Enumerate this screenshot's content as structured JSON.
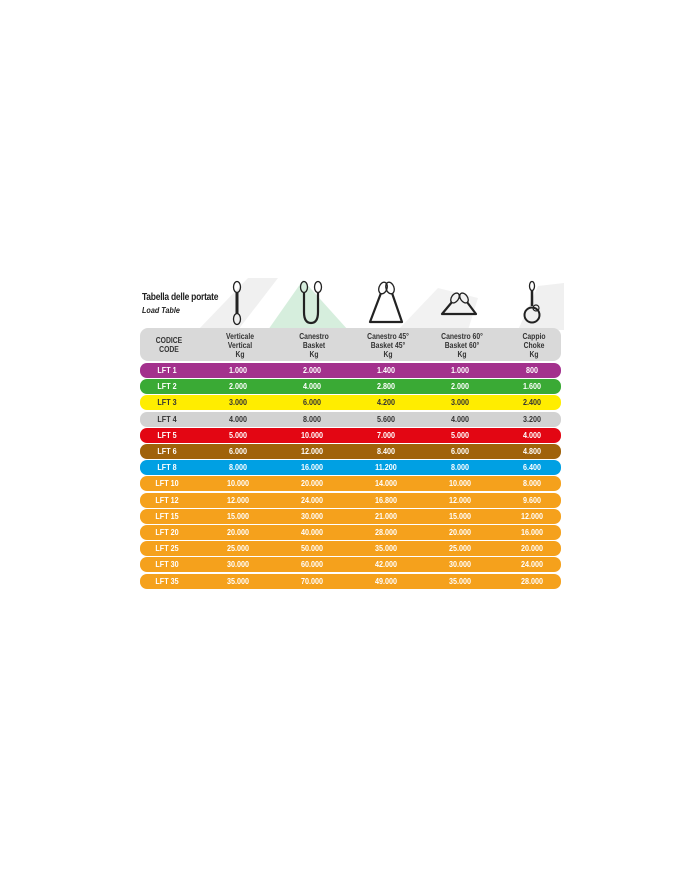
{
  "title": "Tabella delle portate",
  "subtitle": "Load Table",
  "icons": [
    "vertical-sling-icon",
    "basket-sling-icon",
    "basket-45-sling-icon",
    "basket-60-sling-icon",
    "choke-sling-icon"
  ],
  "headers": [
    {
      "l1": "CODICE",
      "l2": "CODE",
      "l3": ""
    },
    {
      "l1": "Verticale",
      "l2": "Vertical",
      "l3": "Kg"
    },
    {
      "l1": "Canestro",
      "l2": "Basket",
      "l3": "Kg"
    },
    {
      "l1": "Canestro 45°",
      "l2": "Basket 45°",
      "l3": "Kg"
    },
    {
      "l1": "Canestro 60°",
      "l2": "Basket 60°",
      "l3": "Kg"
    },
    {
      "l1": "Cappio",
      "l2": "Choke",
      "l3": "Kg"
    }
  ],
  "rows": [
    {
      "color": "#a3318d",
      "text": "#ffffff",
      "cells": [
        "LFT 1",
        "1.000",
        "2.000",
        "1.400",
        "1.000",
        "800"
      ]
    },
    {
      "color": "#3aaa35",
      "text": "#ffffff",
      "cells": [
        "LFT 2",
        "2.000",
        "4.000",
        "2.800",
        "2.000",
        "1.600"
      ]
    },
    {
      "color": "#ffed00",
      "text": "#333333",
      "cells": [
        "LFT 3",
        "3.000",
        "6.000",
        "4.200",
        "3.000",
        "2.400"
      ]
    },
    {
      "color": "#d2d2d2",
      "text": "#333333",
      "cells": [
        "LFT 4",
        "4.000",
        "8.000",
        "5.600",
        "4.000",
        "3.200"
      ]
    },
    {
      "color": "#e30613",
      "text": "#ffffff",
      "cells": [
        "LFT 5",
        "5.000",
        "10.000",
        "7.000",
        "5.000",
        "4.000"
      ]
    },
    {
      "color": "#a0620a",
      "text": "#ffffff",
      "cells": [
        "LFT 6",
        "6.000",
        "12.000",
        "8.400",
        "6.000",
        "4.800"
      ]
    },
    {
      "color": "#00a0e3",
      "text": "#ffffff",
      "cells": [
        "LFT 8",
        "8.000",
        "16.000",
        "11.200",
        "8.000",
        "6.400"
      ]
    },
    {
      "color": "#f5a11c",
      "text": "#ffffff",
      "cells": [
        "LFT 10",
        "10.000",
        "20.000",
        "14.000",
        "10.000",
        "8.000"
      ]
    },
    {
      "color": "#f5a11c",
      "text": "#ffffff",
      "cells": [
        "LFT 12",
        "12.000",
        "24.000",
        "16.800",
        "12.000",
        "9.600"
      ]
    },
    {
      "color": "#f5a11c",
      "text": "#ffffff",
      "cells": [
        "LFT 15",
        "15.000",
        "30.000",
        "21.000",
        "15.000",
        "12.000"
      ]
    },
    {
      "color": "#f5a11c",
      "text": "#ffffff",
      "cells": [
        "LFT 20",
        "20.000",
        "40.000",
        "28.000",
        "20.000",
        "16.000"
      ]
    },
    {
      "color": "#f5a11c",
      "text": "#ffffff",
      "cells": [
        "LFT 25",
        "25.000",
        "50.000",
        "35.000",
        "25.000",
        "20.000"
      ]
    },
    {
      "color": "#f5a11c",
      "text": "#ffffff",
      "cells": [
        "LFT 30",
        "30.000",
        "60.000",
        "42.000",
        "30.000",
        "24.000"
      ]
    },
    {
      "color": "#f5a11c",
      "text": "#ffffff",
      "cells": [
        "LFT 35",
        "35.000",
        "70.000",
        "49.000",
        "35.000",
        "28.000"
      ]
    }
  ]
}
